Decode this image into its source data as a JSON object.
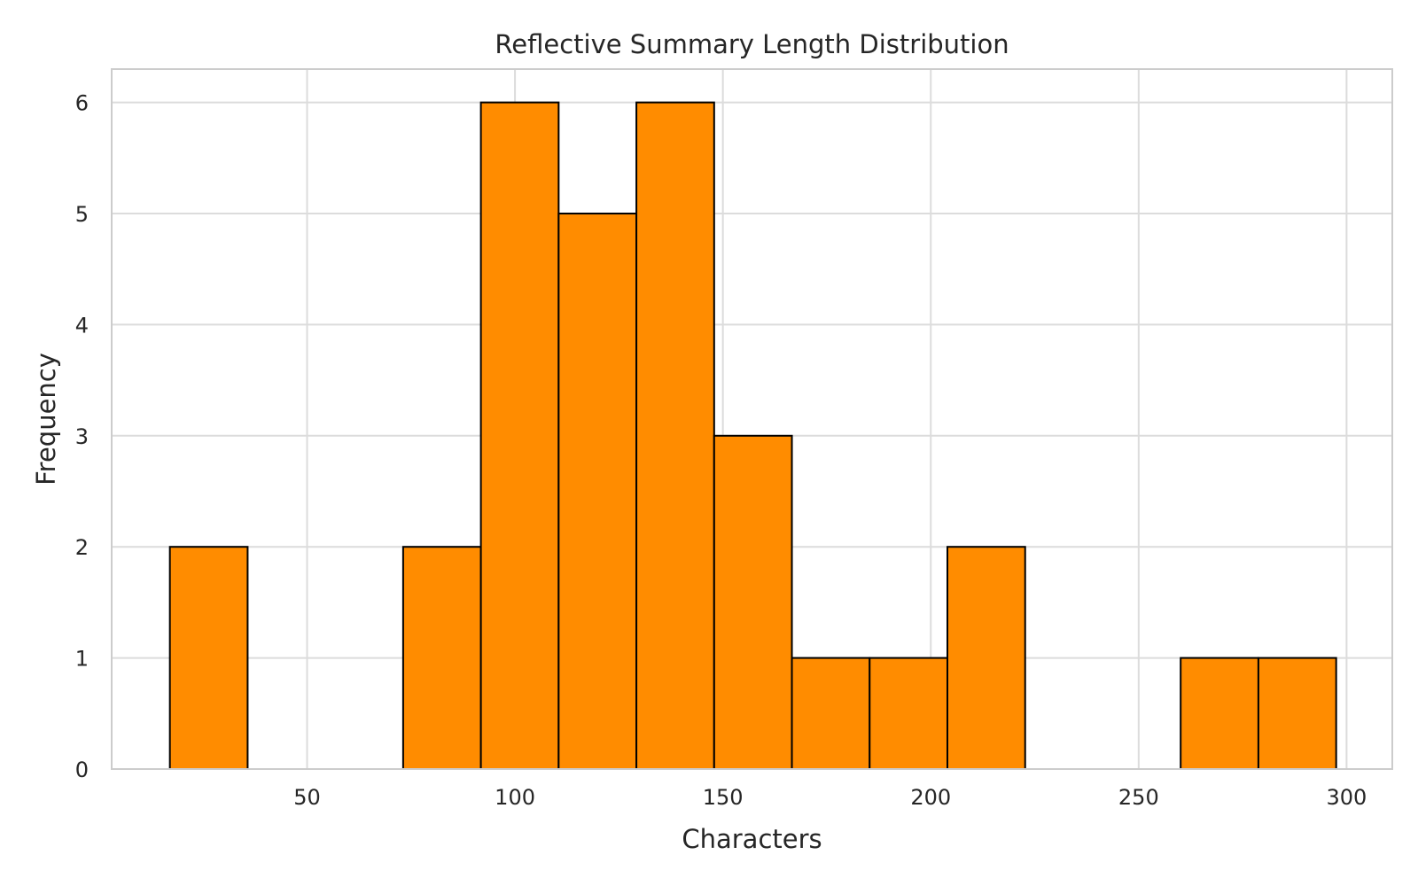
{
  "chart_data": {
    "type": "bar",
    "subtype": "histogram",
    "title": "Reflective Summary Length Distribution",
    "xlabel": "Characters",
    "ylabel": "Frequency",
    "bins": [
      {
        "start": 17.0,
        "end": 35.7,
        "value": 2
      },
      {
        "start": 35.7,
        "end": 54.4,
        "value": 0
      },
      {
        "start": 54.4,
        "end": 73.1,
        "value": 0
      },
      {
        "start": 73.1,
        "end": 91.8,
        "value": 2
      },
      {
        "start": 91.8,
        "end": 110.5,
        "value": 6
      },
      {
        "start": 110.5,
        "end": 129.2,
        "value": 5
      },
      {
        "start": 129.2,
        "end": 147.9,
        "value": 6
      },
      {
        "start": 147.9,
        "end": 166.6,
        "value": 3
      },
      {
        "start": 166.6,
        "end": 185.3,
        "value": 1
      },
      {
        "start": 185.3,
        "end": 204.0,
        "value": 1
      },
      {
        "start": 204.0,
        "end": 222.7,
        "value": 2
      },
      {
        "start": 222.7,
        "end": 241.4,
        "value": 0
      },
      {
        "start": 241.4,
        "end": 260.1,
        "value": 0
      },
      {
        "start": 260.1,
        "end": 278.8,
        "value": 1
      },
      {
        "start": 278.8,
        "end": 297.5,
        "value": 1
      }
    ],
    "xlim": [
      3,
      311
    ],
    "ylim": [
      0,
      6.3
    ],
    "xticks": [
      50,
      100,
      150,
      200,
      250,
      300
    ],
    "yticks": [
      0,
      1,
      2,
      3,
      4,
      5,
      6
    ],
    "grid": true,
    "legend": "none",
    "colors": {
      "bar_fill": "#ff8c00",
      "bar_edge": "#000000",
      "grid": "#dcdcdc",
      "frame": "#cccccc",
      "text": "#262626"
    }
  }
}
